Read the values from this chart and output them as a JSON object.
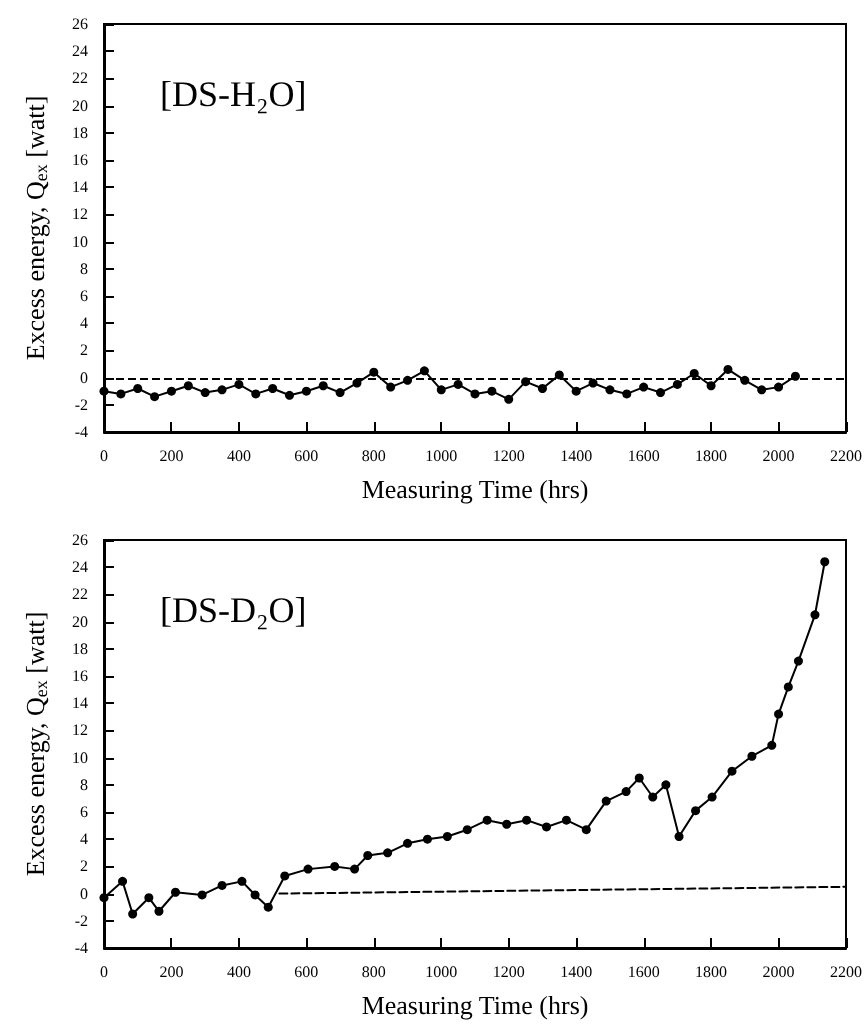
{
  "chart_data": [
    {
      "type": "line",
      "xlabel": "Measuring Time (hrs)",
      "ylabel": "Excess energy, Q$_{ex}$ [watt]",
      "annotations": [
        "[DS-H₂O]"
      ],
      "xlim": [
        0,
        2200
      ],
      "xticks": [
        0,
        200,
        400,
        600,
        800,
        1000,
        1200,
        1400,
        1600,
        1800,
        2000,
        2200
      ],
      "ylim": [
        -4,
        26
      ],
      "yticks": [
        -4,
        -2,
        0,
        2,
        4,
        6,
        8,
        10,
        12,
        14,
        16,
        18,
        20,
        22,
        24,
        26
      ],
      "grid": false,
      "marker": "circle",
      "line_style": "solid",
      "ref_lines": [
        {
          "axis": "y",
          "value": 0,
          "line_style": "dashed",
          "color": "#000000"
        }
      ],
      "series": [
        {
          "color": "#000000",
          "x": [
            0,
            50,
            100,
            150,
            200,
            250,
            300,
            350,
            400,
            450,
            500,
            550,
            600,
            650,
            700,
            750,
            800,
            850,
            900,
            950,
            1000,
            1050,
            1100,
            1150,
            1200,
            1250,
            1300,
            1350,
            1400,
            1450,
            1500,
            1550,
            1600,
            1650,
            1700,
            1750,
            1800,
            1850,
            1900,
            1950,
            2000,
            2050
          ],
          "values": [
            -1,
            -1.2,
            -0.8,
            -1.4,
            -1,
            -0.6,
            -1.1,
            -0.9,
            -0.5,
            -1.2,
            -0.8,
            -1.3,
            -1,
            -0.6,
            -1.1,
            -0.4,
            0.4,
            -0.7,
            -0.2,
            0.5,
            -0.9,
            -0.5,
            -1.2,
            -1,
            -1.6,
            -0.3,
            -0.8,
            0.2,
            -1,
            -0.4,
            -0.9,
            -1.2,
            -0.7,
            -1.1,
            -0.5,
            0.3,
            -0.6,
            0.6,
            -0.2,
            -0.9,
            -0.7,
            0.1
          ]
        }
      ]
    },
    {
      "type": "line",
      "xlabel": "Measuring Time (hrs)",
      "ylabel": "Excess energy, Q$_{ex}$ [watt]",
      "annotations": [
        "[DS-D₂O]"
      ],
      "xlim": [
        0,
        2200
      ],
      "xticks": [
        0,
        200,
        400,
        600,
        800,
        1000,
        1200,
        1400,
        1600,
        1800,
        2000,
        2200
      ],
      "ylim": [
        -4,
        26
      ],
      "yticks": [
        -4,
        -2,
        0,
        2,
        4,
        6,
        8,
        10,
        12,
        14,
        16,
        18,
        20,
        22,
        24,
        26
      ],
      "grid": false,
      "marker": "circle",
      "line_style": "solid",
      "series": [
        {
          "color": "#000000",
          "x": [
            0,
            55,
            85,
            133,
            163,
            212,
            291,
            350,
            409,
            448,
            487,
            536,
            605,
            684,
            743,
            782,
            841,
            900,
            959,
            1018,
            1077,
            1136,
            1194,
            1253,
            1312,
            1371,
            1430,
            1489,
            1548,
            1587,
            1627,
            1666,
            1705,
            1754,
            1803,
            1862,
            1921,
            1980,
            2000,
            2029,
            2059,
            2108,
            2137
          ],
          "values": [
            -0.3,
            0.9,
            -1.5,
            -0.3,
            -1.3,
            0.1,
            -0.1,
            0.6,
            0.9,
            -0.1,
            -1,
            1.3,
            1.8,
            2,
            1.8,
            2.8,
            3,
            3.7,
            4,
            4.2,
            4.7,
            5.4,
            5.1,
            5.4,
            4.9,
            5.4,
            4.7,
            6.8,
            7.5,
            8.5,
            7.1,
            8,
            4.2,
            6.1,
            7.1,
            9,
            10.1,
            10.9,
            13.2,
            15.2,
            17.1,
            20.5,
            24.4
          ]
        },
        {
          "type": "line",
          "color": "#000000",
          "marker": "none",
          "line_style": "dashed",
          "x": [
            520,
            2200
          ],
          "values": [
            0,
            0.5
          ]
        }
      ]
    }
  ]
}
